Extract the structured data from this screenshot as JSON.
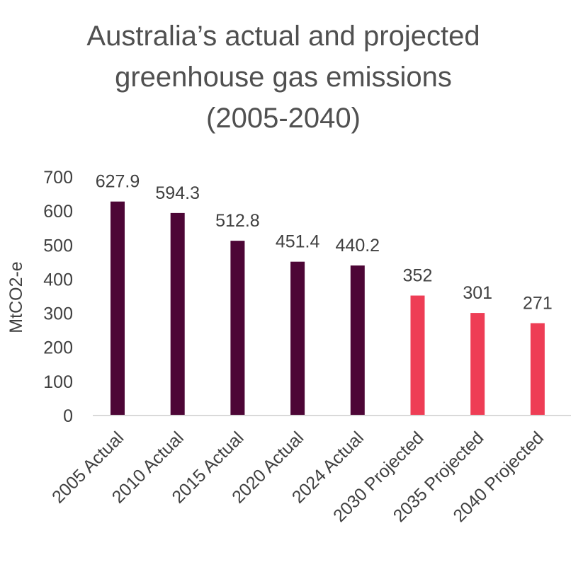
{
  "chart_data": {
    "type": "bar",
    "title_lines": [
      "Australia’s actual and projected",
      "greenhouse gas emissions",
      "(2005-2040)"
    ],
    "ylabel": "MtCO2-e",
    "xlabel": "",
    "ylim": [
      0,
      700
    ],
    "yticks": [
      "0",
      "100",
      "200",
      "300",
      "400",
      "500",
      "600",
      "700"
    ],
    "categories": [
      "2005 Actual",
      "2010 Actual",
      "2015 Actual",
      "2020 Actual",
      "2024 Actual",
      "2030 Projected",
      "2035 Projected",
      "2040 Projected"
    ],
    "values": [
      627.9,
      594.3,
      512.8,
      451.4,
      440.2,
      352,
      301,
      271
    ],
    "value_labels": [
      "627.9",
      "594.3",
      "512.8",
      "451.4",
      "440.2",
      "352",
      "301",
      "271"
    ],
    "colors": {
      "actual": "#4d0636",
      "projected": "#ee3d55"
    },
    "grid": false,
    "legend": "none"
  }
}
